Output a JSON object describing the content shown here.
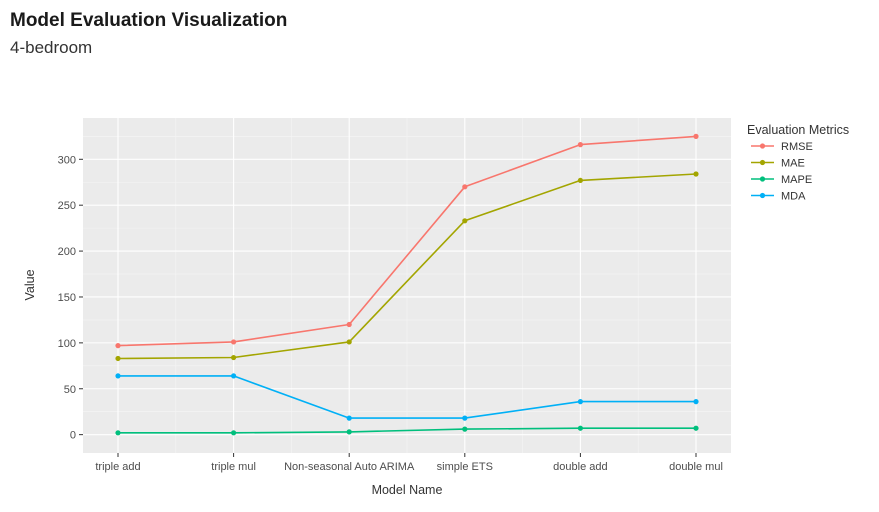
{
  "chart_data": {
    "type": "line",
    "title": "Model Evaluation Visualization",
    "subtitle": "4-bedroom",
    "xlabel": "Model Name",
    "ylabel": "Value",
    "categories": [
      "triple add",
      "triple mul",
      "Non-seasonal Auto ARIMA",
      "simple ETS",
      "double add",
      "double mul"
    ],
    "ylim": [
      -20,
      345
    ],
    "yticks": [
      0,
      50,
      100,
      150,
      200,
      250,
      300
    ],
    "grid": true,
    "legend": {
      "title": "Evaluation Metrics",
      "placement": "right"
    },
    "series": [
      {
        "name": "RMSE",
        "color": "#F8766D",
        "values": [
          97,
          101,
          120,
          270,
          316,
          325
        ]
      },
      {
        "name": "MAE",
        "color": "#A3A500",
        "values": [
          83,
          84,
          101,
          233,
          277,
          284
        ]
      },
      {
        "name": "MAPE",
        "color": "#00BF7D",
        "values": [
          2,
          2,
          3,
          6,
          7,
          7
        ]
      },
      {
        "name": "MDA",
        "color": "#00B0F6",
        "values": [
          64,
          64,
          18,
          18,
          36,
          36
        ]
      }
    ]
  }
}
